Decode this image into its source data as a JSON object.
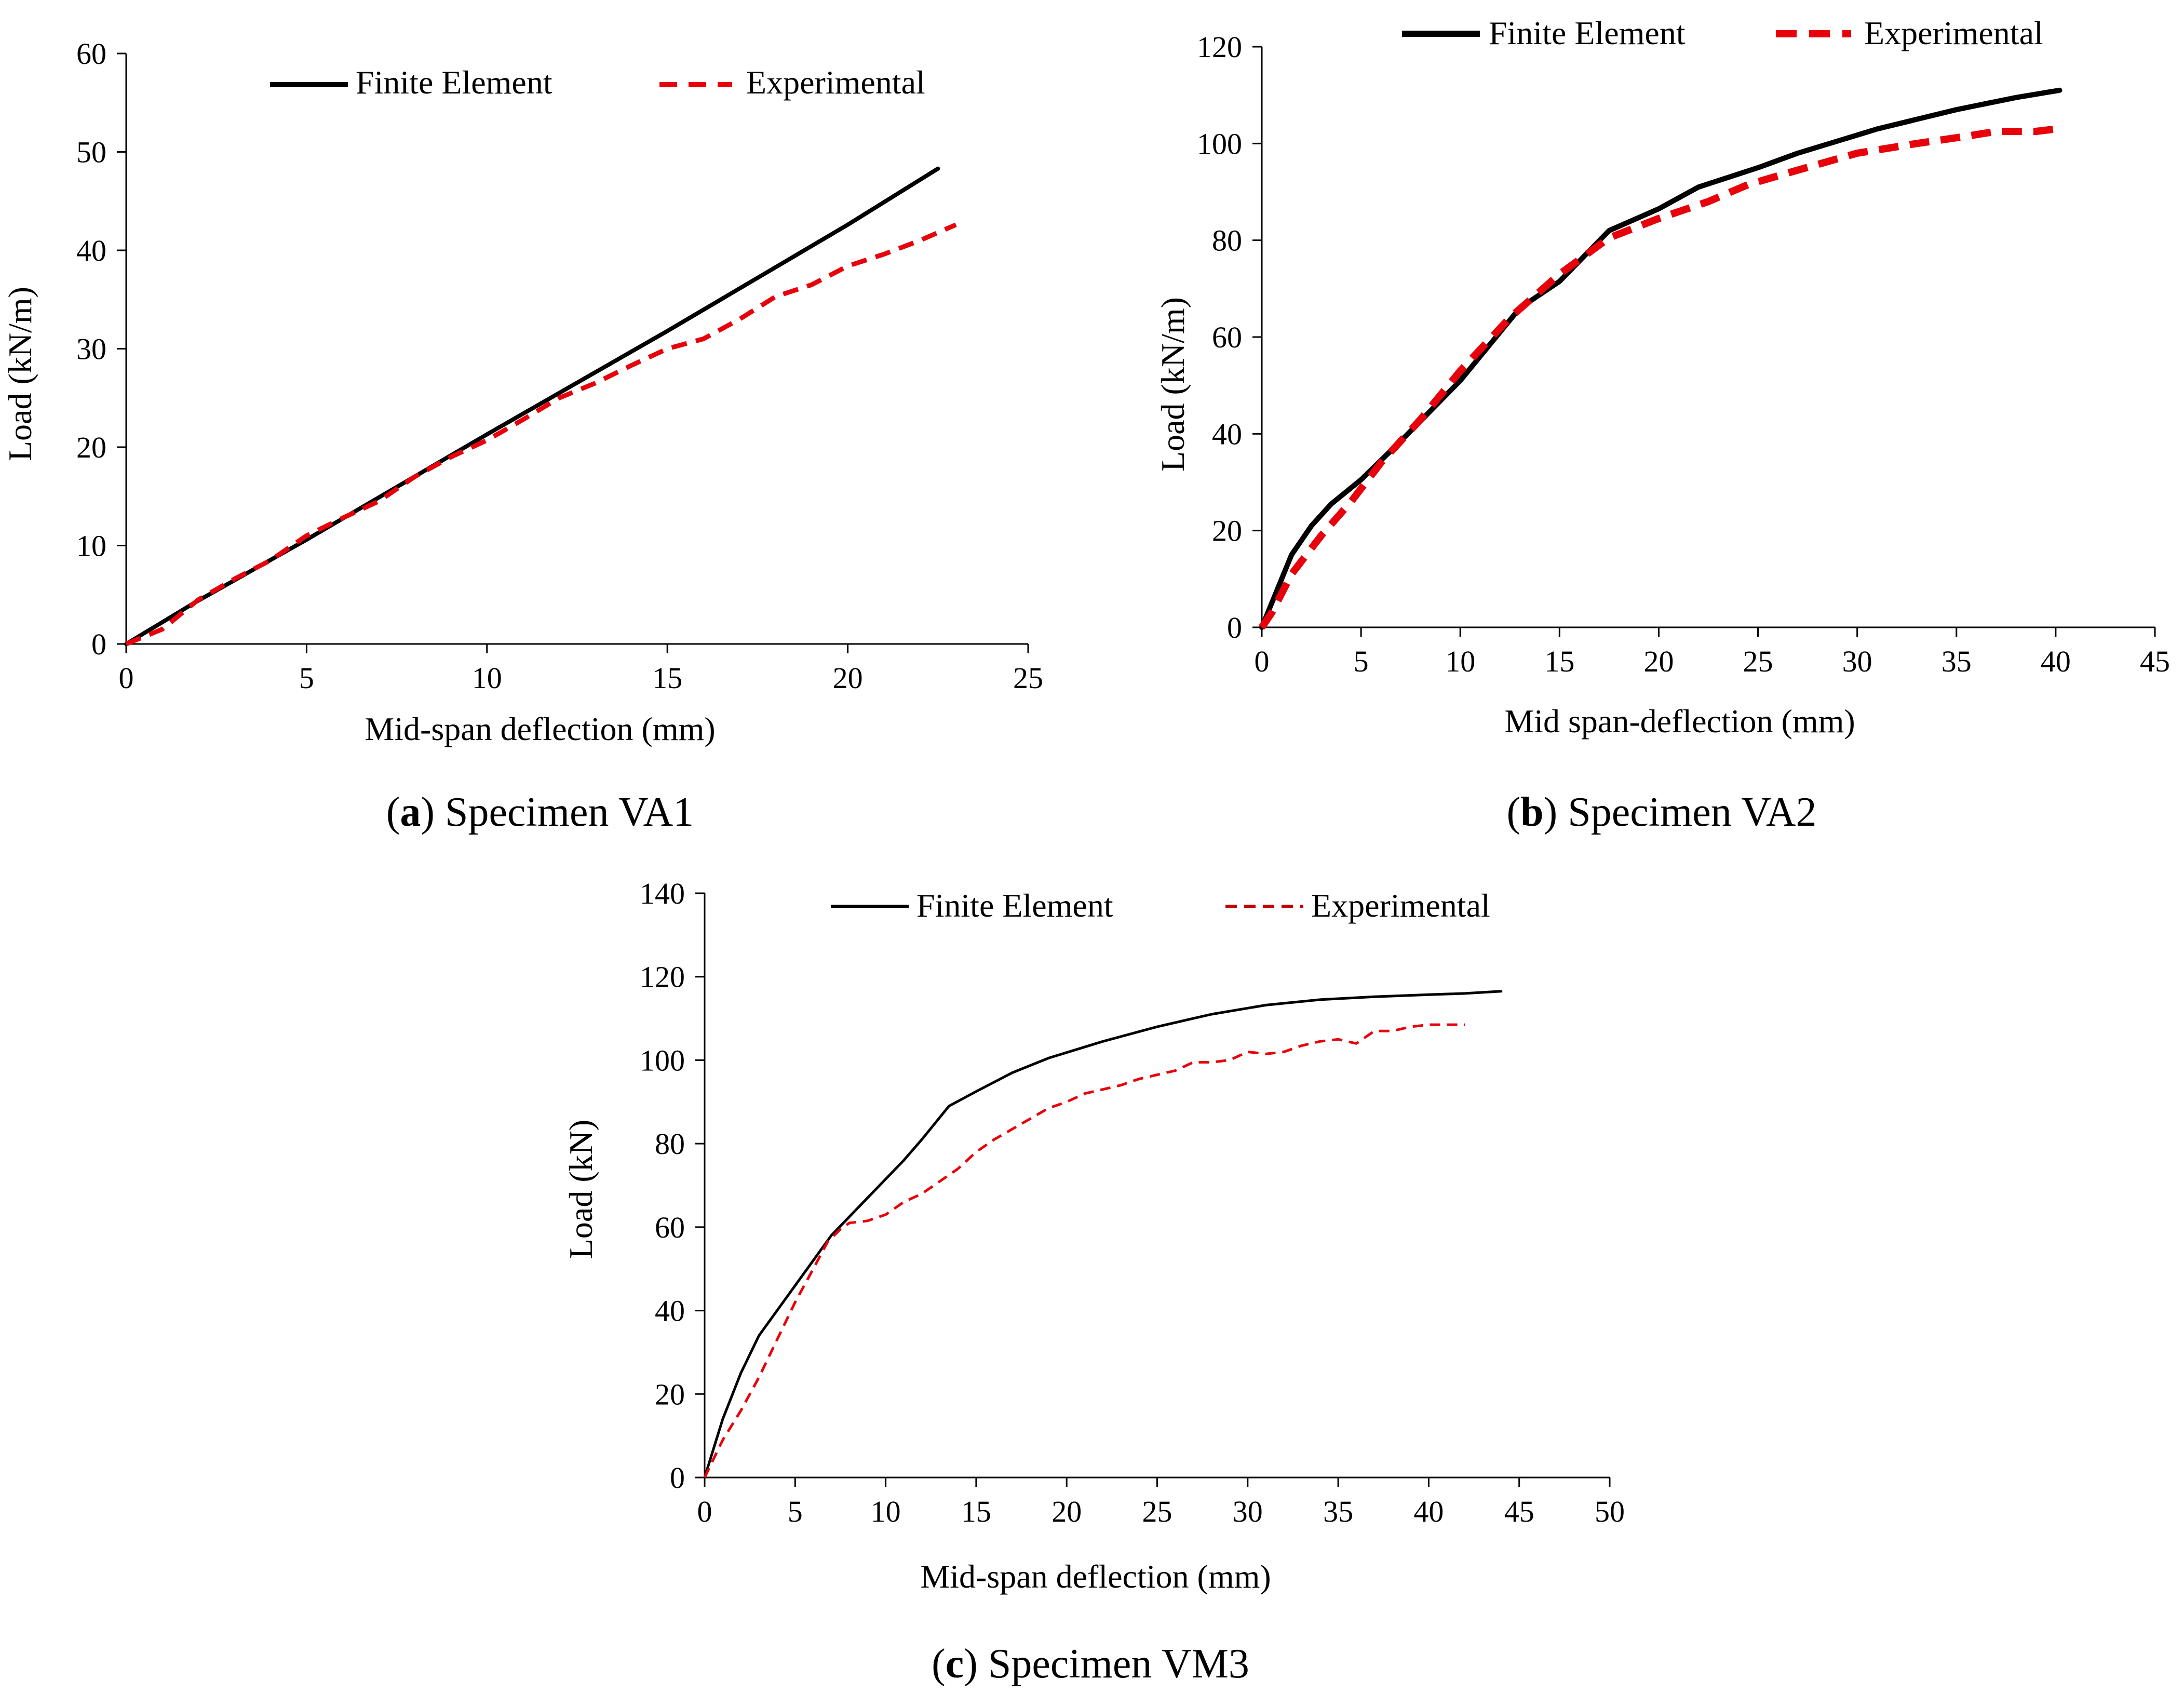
{
  "chart_data": [
    {
      "id": "a",
      "type": "line",
      "caption": {
        "letter": "a",
        "text": ") Specimen VA1"
      },
      "xlabel": "Mid-span deflection (mm)",
      "ylabel": "Load (kN/m)",
      "xlim": [
        0,
        25
      ],
      "ylim": [
        0,
        60
      ],
      "xticks": [
        0,
        5,
        10,
        15,
        20,
        25
      ],
      "yticks": [
        0,
        10,
        20,
        30,
        40,
        50,
        60
      ],
      "legend_position": "top",
      "series": [
        {
          "name": "Finite Element",
          "style": "solid",
          "color": "#000000",
          "points": [
            [
              0,
              0
            ],
            [
              1.9,
              4.2
            ],
            [
              5,
              10.6
            ],
            [
              10,
              21.3
            ],
            [
              15,
              31.8
            ],
            [
              20,
              42.6
            ],
            [
              22.5,
              48.3
            ]
          ]
        },
        {
          "name": "Experimental",
          "style": "dashed",
          "color": "#e8000b",
          "points": [
            [
              0,
              0
            ],
            [
              1,
              1.5
            ],
            [
              2,
              4.5
            ],
            [
              3,
              6.6
            ],
            [
              4,
              8.5
            ],
            [
              5,
              11
            ],
            [
              6,
              12.8
            ],
            [
              7,
              14.5
            ],
            [
              8,
              17
            ],
            [
              9,
              19
            ],
            [
              10,
              20.7
            ],
            [
              11,
              22.8
            ],
            [
              12,
              25
            ],
            [
              13,
              26.5
            ],
            [
              14,
              28.3
            ],
            [
              15,
              30
            ],
            [
              16,
              31
            ],
            [
              17,
              33
            ],
            [
              18,
              35.3
            ],
            [
              19,
              36.5
            ],
            [
              20,
              38.4
            ],
            [
              21,
              39.6
            ],
            [
              22,
              41
            ],
            [
              23,
              42.6
            ]
          ]
        }
      ]
    },
    {
      "id": "b",
      "type": "line",
      "caption": {
        "letter": "b",
        "text": ") Specimen VA2"
      },
      "xlabel": "Mid span-deflection (mm)",
      "ylabel": "Load (kN/m)",
      "xlim": [
        0,
        45
      ],
      "ylim": [
        0,
        120
      ],
      "xticks": [
        0,
        5,
        10,
        15,
        20,
        25,
        30,
        35,
        40,
        45
      ],
      "yticks": [
        0,
        20,
        40,
        60,
        80,
        100,
        120
      ],
      "legend_position": "top",
      "series": [
        {
          "name": "Finite Element",
          "style": "solid",
          "color": "#000000",
          "points": [
            [
              0,
              0
            ],
            [
              0.5,
              5
            ],
            [
              1.5,
              15
            ],
            [
              2.5,
              21
            ],
            [
              3.5,
              25.5
            ],
            [
              5,
              30.5
            ],
            [
              7,
              38.5
            ],
            [
              10,
              51
            ],
            [
              13,
              66
            ],
            [
              15,
              71.5
            ],
            [
              17.5,
              82
            ],
            [
              20,
              86.5
            ],
            [
              22,
              91
            ],
            [
              25,
              95
            ],
            [
              27,
              98
            ],
            [
              31,
              103
            ],
            [
              35,
              107
            ],
            [
              38,
              109.5
            ],
            [
              40.2,
              111
            ]
          ]
        },
        {
          "name": "Experimental",
          "style": "dashed",
          "color": "#e8000b",
          "points": [
            [
              0,
              0
            ],
            [
              0.5,
              3
            ],
            [
              1.5,
              11
            ],
            [
              3,
              19
            ],
            [
              4.5,
              26
            ],
            [
              6,
              34
            ],
            [
              8,
              43
            ],
            [
              10,
              53
            ],
            [
              12.5,
              64
            ],
            [
              15,
              73
            ],
            [
              17.5,
              80.5
            ],
            [
              20,
              84.5
            ],
            [
              22.5,
              88
            ],
            [
              24.5,
              91.5
            ],
            [
              27,
              94.5
            ],
            [
              30,
              98
            ],
            [
              33,
              100
            ],
            [
              35.5,
              101.5
            ],
            [
              37,
              102.5
            ],
            [
              39,
              102.5
            ],
            [
              40,
              103
            ]
          ]
        }
      ]
    },
    {
      "id": "c",
      "type": "line",
      "caption": {
        "letter": "c",
        "text": ") Specimen VM3"
      },
      "xlabel": "Mid-span deflection (mm)",
      "ylabel": "Load (kN)",
      "xlim": [
        0,
        50
      ],
      "ylim": [
        0,
        140
      ],
      "xticks": [
        0,
        5,
        10,
        15,
        20,
        25,
        30,
        35,
        40,
        45,
        50
      ],
      "yticks": [
        0,
        20,
        40,
        60,
        80,
        100,
        120,
        140
      ],
      "legend_position": "top",
      "series": [
        {
          "name": "Finite Element",
          "style": "solid",
          "color": "#000000",
          "points": [
            [
              0,
              0
            ],
            [
              0.5,
              7
            ],
            [
              1,
              14
            ],
            [
              2,
              25
            ],
            [
              3,
              34
            ],
            [
              5,
              46
            ],
            [
              7,
              58
            ],
            [
              9,
              67
            ],
            [
              11,
              76
            ],
            [
              12,
              81
            ],
            [
              13.5,
              89
            ],
            [
              15,
              92.5
            ],
            [
              17,
              97
            ],
            [
              19,
              100.5
            ],
            [
              22,
              104.5
            ],
            [
              25,
              108
            ],
            [
              28,
              111
            ],
            [
              31,
              113.2
            ],
            [
              34,
              114.5
            ],
            [
              37,
              115.2
            ],
            [
              40,
              115.7
            ],
            [
              42,
              116
            ],
            [
              44,
              116.5
            ]
          ]
        },
        {
          "name": "Experimental",
          "style": "dashed",
          "color": "#e8000b",
          "points": [
            [
              0,
              0
            ],
            [
              1,
              9
            ],
            [
              2,
              16
            ],
            [
              3,
              24
            ],
            [
              4,
              33
            ],
            [
              5,
              42
            ],
            [
              6,
              50
            ],
            [
              6.8,
              56.5
            ],
            [
              7.5,
              59.5
            ],
            [
              8,
              61
            ],
            [
              9,
              61.5
            ],
            [
              10,
              63
            ],
            [
              11,
              66
            ],
            [
              12,
              68
            ],
            [
              13,
              71
            ],
            [
              14,
              74
            ],
            [
              15,
              78
            ],
            [
              16,
              81
            ],
            [
              17,
              83.5
            ],
            [
              18,
              86
            ],
            [
              19,
              88.5
            ],
            [
              20,
              90
            ],
            [
              21,
              92
            ],
            [
              22,
              93
            ],
            [
              23,
              94
            ],
            [
              24,
              95.5
            ],
            [
              25,
              96.5
            ],
            [
              26,
              97.5
            ],
            [
              27,
              99.5
            ],
            [
              28,
              99.5
            ],
            [
              29,
              100
            ],
            [
              30,
              102
            ],
            [
              31,
              101.5
            ],
            [
              32,
              102
            ],
            [
              33,
              103.5
            ],
            [
              34,
              104.5
            ],
            [
              35,
              105
            ],
            [
              36,
              104
            ],
            [
              37,
              107
            ],
            [
              38,
              107
            ],
            [
              39,
              108
            ],
            [
              40,
              108.5
            ],
            [
              41,
              108.5
            ],
            [
              42,
              108.5
            ]
          ]
        }
      ]
    }
  ]
}
